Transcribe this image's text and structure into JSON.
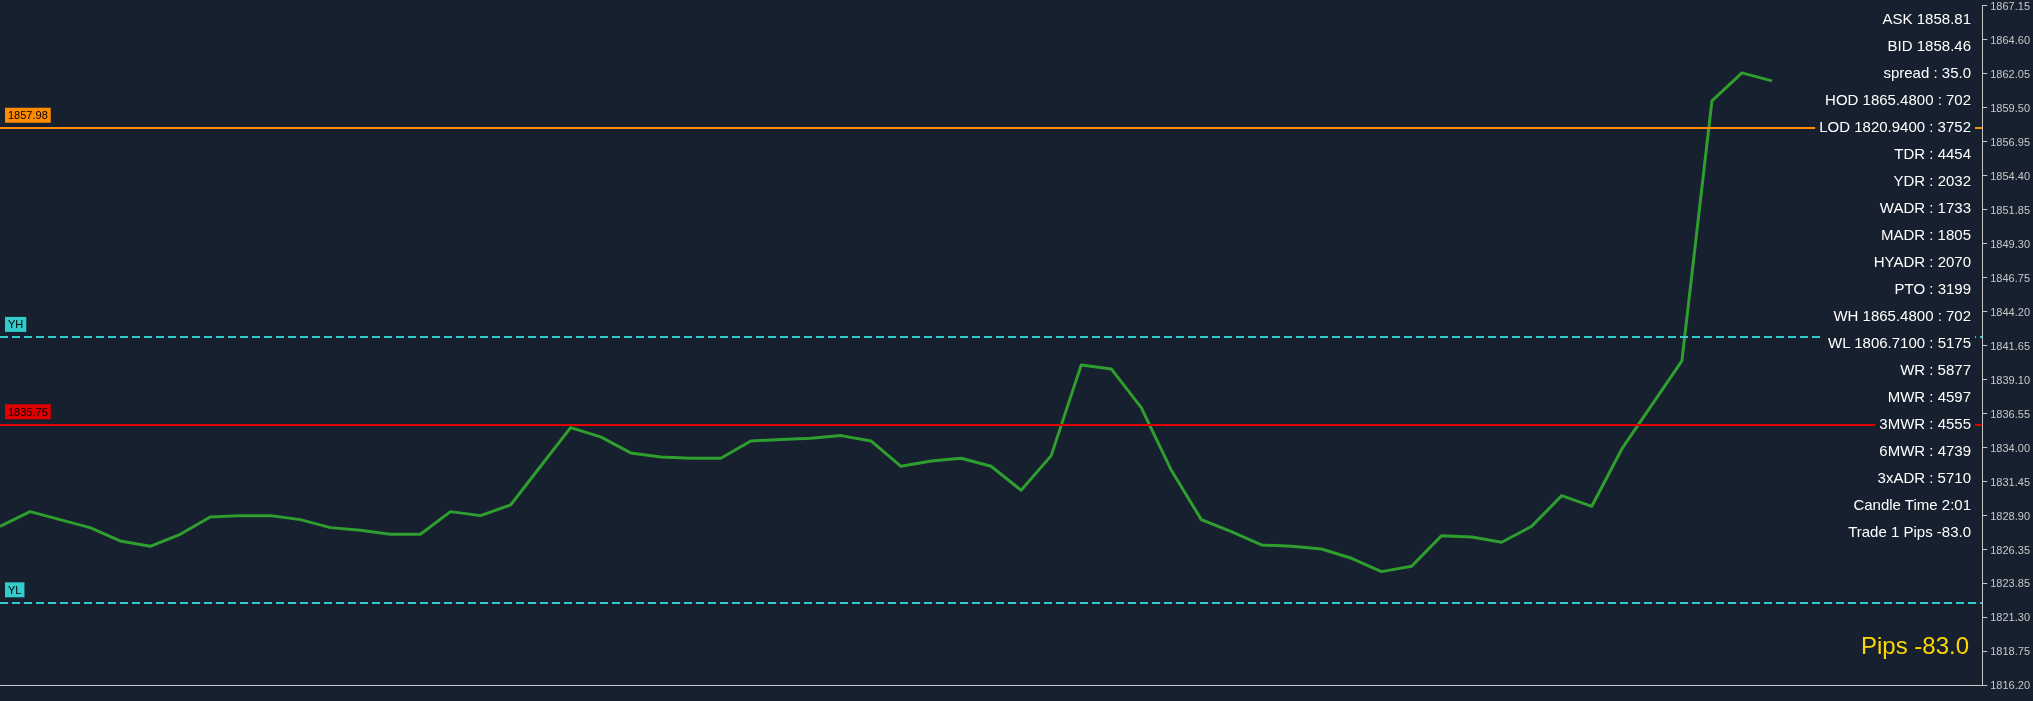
{
  "chart_data": {
    "type": "line",
    "categories": [
      null,
      null,
      null,
      null,
      null,
      null,
      null,
      null,
      null,
      null,
      null,
      null,
      null,
      null,
      null,
      null,
      null,
      null,
      null,
      null,
      null,
      null,
      null,
      null,
      null,
      null,
      null,
      null,
      null,
      null,
      null,
      null,
      null,
      null,
      null,
      null,
      null,
      null,
      null,
      null,
      null,
      null,
      null,
      null,
      null,
      null,
      null,
      null,
      null,
      null,
      null,
      null,
      null,
      null,
      null,
      null,
      null,
      null,
      null,
      null,
      null,
      null,
      null,
      null,
      null,
      null,
      null
    ],
    "series": [
      {
        "color": "#2e9e2e",
        "values": [
          1828.1,
          1829.2,
          1828.6,
          1828.0,
          1827.0,
          1826.6,
          1827.5,
          1828.8,
          1828.9,
          1828.9,
          1828.6,
          1828.0,
          1827.8,
          1827.5,
          1827.5,
          1829.2,
          1828.9,
          1829.7,
          1832.6,
          1835.5,
          1834.8,
          1833.6,
          1833.3,
          1833.2,
          1833.2,
          1834.5,
          1834.6,
          1834.7,
          1834.9,
          1834.5,
          1832.6,
          1833.0,
          1833.2,
          1832.6,
          1830.8,
          1833.4,
          1840.2,
          1839.9,
          1837.0,
          1832.3,
          1828.6,
          1827.7,
          1826.7,
          1826.6,
          1826.4,
          1825.7,
          1824.7,
          1825.1,
          1827.4,
          1827.3,
          1826.9,
          1828.1,
          1830.4,
          1829.6,
          1833.9,
          1837.2,
          1840.5,
          1860.0,
          1862.1,
          1861.5,
          null,
          null,
          null,
          null,
          null,
          null,
          null
        ]
      }
    ],
    "ylim": [
      1816.2,
      1867.15
    ],
    "yticks": [
      {
        "value": 1816.2,
        "label": "1816.20"
      },
      1818.75,
      {
        "value": 1821.3,
        "label": "1821.30"
      },
      1823.85,
      1826.35,
      {
        "value": 1828.9,
        "label": "1828.90"
      },
      1831.45,
      {
        "value": 1834,
        "label": "1834.00"
      },
      1836.55,
      {
        "value": 1839.1,
        "label": "1839.10"
      },
      1841.65,
      {
        "value": 1844.2,
        "label": "1844.20"
      },
      1846.75,
      {
        "value": 1849.3,
        "label": "1849.30"
      },
      1851.85,
      {
        "value": 1854.4,
        "label": "1854.40"
      },
      1856.95,
      {
        "value": 1859.5,
        "label": "1859.50"
      },
      1862.05,
      {
        "value": 1864.6,
        "label": "1864.60"
      },
      1867.15
    ],
    "tick_labels": "y",
    "grid": false,
    "ref_lines": [
      {
        "axis": "y",
        "value": 1857.98,
        "label": "1857.98",
        "color": "#ff8c00",
        "line_style": "solid"
      },
      {
        "axis": "y",
        "value": 1835.75,
        "label": "1835.75",
        "color": "#e00000",
        "line_style": "solid"
      },
      {
        "axis": "y",
        "value": 1842.3,
        "label": "YH",
        "color": "#33cccc",
        "line_style": "dashed"
      },
      {
        "axis": "y",
        "value": 1822.4,
        "label": "YL",
        "color": "#33cccc",
        "line_style": "dashed"
      }
    ],
    "annotations": [
      "ASK 1858.81",
      "BID 1858.46",
      "spread : 35.0",
      "HOD 1865.4800 : 702",
      "LOD 1820.9400 : 3752",
      "TDR : 4454",
      "YDR : 2032",
      "WADR : 1733",
      "MADR : 1805",
      "HYADR : 2070",
      "PTO : 3199",
      "WH 1865.4800 : 702",
      "WL 1806.7100 : 5175",
      "WR : 5877",
      "MWR : 4597",
      "3MWR : 4555",
      "6MWR : 4739",
      "3xADR : 5710",
      "Candle Time 2:01",
      "Trade 1 Pips -83.0",
      "Pips -83.0"
    ]
  }
}
